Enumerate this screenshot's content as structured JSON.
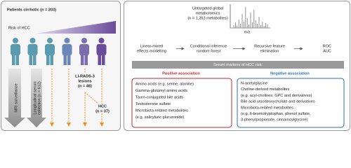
{
  "left": {
    "title": "Patients cirrhotic (n = 203)",
    "risk": "Risk of HCC",
    "mri": "MRI surveillance",
    "serum": [
      "Longitudinal serum",
      "collection (n = 612)"
    ],
    "lirads": [
      "LI-RADS-3",
      "lesions",
      "(n = 48)"
    ],
    "hcc": [
      "HCC",
      "(n = 37)"
    ]
  },
  "right": {
    "metabolomics": [
      "Untargeted global",
      "metabolomics",
      "(n = 1,263 metabolites)"
    ],
    "mz": "m/z",
    "steps": [
      [
        "Linear-mixed",
        "effects modelling"
      ],
      [
        "Conditional inference",
        "random forest"
      ],
      [
        "Recursive feature",
        "elimination"
      ],
      [
        "ROC",
        "AUC"
      ]
    ],
    "markers": "Serum markers of HCC risk:",
    "positive": {
      "title": "Positive association",
      "items": [
        "Amino acids (e.g. serine, alanine)",
        "Gamma-glutamyl amino acids",
        "Tauro-conjugated bile acids",
        "Testosterone sulfate",
        "Microbiota-related metabolites",
        "(e.g. salicyluric glucuronide)"
      ]
    },
    "negative": {
      "title": "Negative association",
      "items": [
        "N-acetylglycine",
        "Choline-derived metabolites",
        "(e.g. acyl-cholines; GPC and derivatives)",
        "Bile acid ursodeoxycholate and derivatives",
        "Microbiota-related metabolites",
        "(e.g. 6-bromotryptophan, phenol sulfate,",
        "3-phenylpropionate, cinnamoylglycine)"
      ]
    }
  }
}
